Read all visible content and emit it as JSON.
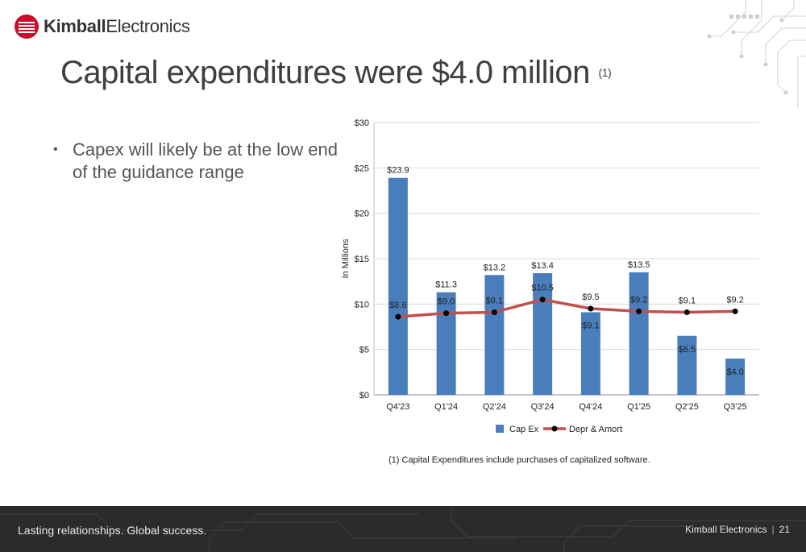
{
  "header": {
    "logo_text_bold": "Kimball",
    "logo_text_light": "Electronics"
  },
  "title": {
    "main": "Capital expenditures were $4.0 million",
    "footnote_ref": "(1)"
  },
  "bullets": [
    "Capex will likely be at the low end of the guidance range"
  ],
  "footnote": "(1)  Capital Expenditures include purchases of capitalized software.",
  "footer": {
    "tagline": "Lasting relationships. Global success.",
    "company": "Kimball Electronics",
    "separator": "|",
    "page_number": "21"
  },
  "colors": {
    "bar": "#4a7ebb",
    "line": "#c0504d",
    "marker": "#000000",
    "brand_red": "#c8102e"
  },
  "chart_data": {
    "type": "bar",
    "categories": [
      "Q4'23",
      "Q1'24",
      "Q2'24",
      "Q3'24",
      "Q4'24",
      "Q1'25",
      "Q2'25",
      "Q3'25"
    ],
    "series": [
      {
        "name": "Cap Ex",
        "type": "bar",
        "values": [
          23.9,
          11.3,
          13.2,
          13.4,
          9.1,
          13.5,
          6.5,
          4.0
        ],
        "labels": [
          "$23.9",
          "$11.3",
          "$13.2",
          "$13.4",
          "$9.1",
          "$13.5",
          "$6.5",
          "$4.0"
        ]
      },
      {
        "name": "Depr & Amort",
        "type": "line",
        "values": [
          8.6,
          9.0,
          9.1,
          10.5,
          9.5,
          9.2,
          9.1,
          9.2
        ],
        "labels": [
          "$8.6",
          "$9.0",
          "$9.1",
          "$10.5",
          "$9.5",
          "$9.2",
          "$9.1",
          "$9.2"
        ]
      }
    ],
    "ylabel": "In Millions",
    "ylim": [
      0,
      30
    ],
    "yticks": [
      "$0",
      "$5",
      "$10",
      "$15",
      "$20",
      "$25",
      "$30"
    ],
    "grid": true,
    "legend_position": "bottom"
  }
}
